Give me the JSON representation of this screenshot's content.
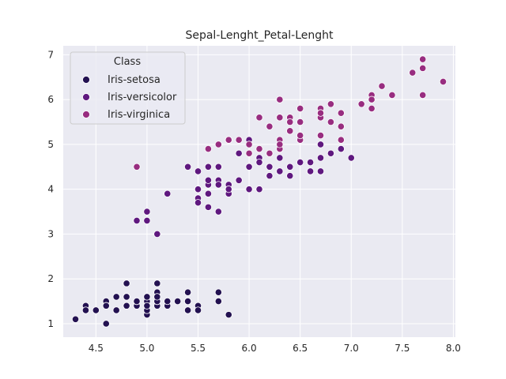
{
  "chart_data": {
    "type": "scatter",
    "title": "Sepal-Lenght_Petal-Lenght",
    "xlabel": "",
    "ylabel": "",
    "xlim": [
      4.18,
      8.02
    ],
    "ylim": [
      0.7,
      7.2
    ],
    "xticks": [
      "4.5",
      "5.0",
      "5.5",
      "6.0",
      "6.5",
      "7.0",
      "7.5",
      "8.0"
    ],
    "yticks": [
      "1",
      "2",
      "3",
      "4",
      "5",
      "6",
      "7"
    ],
    "grid": true,
    "legend": {
      "title": "Class",
      "placement": "top-left"
    },
    "series": [
      {
        "name": "Iris-setosa",
        "color": "#231151",
        "points": [
          [
            5.1,
            1.4
          ],
          [
            4.9,
            1.4
          ],
          [
            4.7,
            1.3
          ],
          [
            4.6,
            1.5
          ],
          [
            5.0,
            1.4
          ],
          [
            5.4,
            1.7
          ],
          [
            4.6,
            1.4
          ],
          [
            5.0,
            1.5
          ],
          [
            4.4,
            1.4
          ],
          [
            4.9,
            1.5
          ],
          [
            5.4,
            1.5
          ],
          [
            4.8,
            1.6
          ],
          [
            4.8,
            1.4
          ],
          [
            4.3,
            1.1
          ],
          [
            5.8,
            1.2
          ],
          [
            5.7,
            1.5
          ],
          [
            5.4,
            1.3
          ],
          [
            5.1,
            1.4
          ],
          [
            5.7,
            1.7
          ],
          [
            5.1,
            1.5
          ],
          [
            5.4,
            1.7
          ],
          [
            5.1,
            1.5
          ],
          [
            4.6,
            1.0
          ],
          [
            5.1,
            1.7
          ],
          [
            4.8,
            1.9
          ],
          [
            5.0,
            1.6
          ],
          [
            5.0,
            1.6
          ],
          [
            5.2,
            1.5
          ],
          [
            5.2,
            1.4
          ],
          [
            4.7,
            1.6
          ],
          [
            4.8,
            1.6
          ],
          [
            5.4,
            1.5
          ],
          [
            5.2,
            1.5
          ],
          [
            5.5,
            1.4
          ],
          [
            4.9,
            1.5
          ],
          [
            5.0,
            1.2
          ],
          [
            5.5,
            1.3
          ],
          [
            4.9,
            1.5
          ],
          [
            4.4,
            1.3
          ],
          [
            5.1,
            1.5
          ],
          [
            5.0,
            1.3
          ],
          [
            4.5,
            1.3
          ],
          [
            4.4,
            1.3
          ],
          [
            5.0,
            1.6
          ],
          [
            5.1,
            1.9
          ],
          [
            4.8,
            1.4
          ],
          [
            5.1,
            1.6
          ],
          [
            4.6,
            1.4
          ],
          [
            5.3,
            1.5
          ],
          [
            5.0,
            1.4
          ]
        ]
      },
      {
        "name": "Iris-versicolor",
        "color": "#5f187f",
        "points": [
          [
            7.0,
            4.7
          ],
          [
            6.4,
            4.5
          ],
          [
            6.9,
            4.9
          ],
          [
            5.5,
            4.0
          ],
          [
            6.5,
            4.6
          ],
          [
            5.7,
            4.5
          ],
          [
            6.3,
            4.7
          ],
          [
            4.9,
            3.3
          ],
          [
            6.6,
            4.6
          ],
          [
            5.2,
            3.9
          ],
          [
            5.0,
            3.5
          ],
          [
            5.9,
            4.2
          ],
          [
            6.0,
            4.0
          ],
          [
            6.1,
            4.7
          ],
          [
            5.6,
            3.6
          ],
          [
            6.7,
            4.4
          ],
          [
            5.6,
            4.5
          ],
          [
            5.8,
            4.1
          ],
          [
            6.2,
            4.5
          ],
          [
            5.6,
            3.9
          ],
          [
            5.9,
            4.8
          ],
          [
            6.1,
            4.0
          ],
          [
            6.3,
            4.9
          ],
          [
            6.1,
            4.7
          ],
          [
            6.4,
            4.3
          ],
          [
            6.6,
            4.4
          ],
          [
            6.8,
            4.8
          ],
          [
            6.7,
            5.0
          ],
          [
            6.0,
            4.5
          ],
          [
            5.7,
            3.5
          ],
          [
            5.5,
            3.8
          ],
          [
            5.5,
            3.7
          ],
          [
            5.8,
            3.9
          ],
          [
            6.0,
            5.1
          ],
          [
            5.4,
            4.5
          ],
          [
            6.0,
            4.5
          ],
          [
            6.7,
            4.7
          ],
          [
            6.3,
            4.4
          ],
          [
            5.6,
            4.1
          ],
          [
            5.5,
            4.0
          ],
          [
            5.5,
            4.4
          ],
          [
            6.1,
            4.6
          ],
          [
            5.8,
            4.0
          ],
          [
            5.0,
            3.3
          ],
          [
            5.6,
            4.2
          ],
          [
            5.7,
            4.2
          ],
          [
            5.7,
            4.2
          ],
          [
            6.2,
            4.3
          ],
          [
            5.1,
            3.0
          ],
          [
            5.7,
            4.1
          ]
        ]
      },
      {
        "name": "Iris-virginica",
        "color": "#982d80",
        "points": [
          [
            6.3,
            6.0
          ],
          [
            5.8,
            5.1
          ],
          [
            7.1,
            5.9
          ],
          [
            6.3,
            5.6
          ],
          [
            6.5,
            5.8
          ],
          [
            7.6,
            6.6
          ],
          [
            4.9,
            4.5
          ],
          [
            7.3,
            6.3
          ],
          [
            6.7,
            5.8
          ],
          [
            7.2,
            6.1
          ],
          [
            6.5,
            5.1
          ],
          [
            6.4,
            5.3
          ],
          [
            6.8,
            5.5
          ],
          [
            5.7,
            5.0
          ],
          [
            5.8,
            5.1
          ],
          [
            6.4,
            5.3
          ],
          [
            6.5,
            5.5
          ],
          [
            7.7,
            6.7
          ],
          [
            7.7,
            6.9
          ],
          [
            6.0,
            5.0
          ],
          [
            6.9,
            5.7
          ],
          [
            5.6,
            4.9
          ],
          [
            7.7,
            6.7
          ],
          [
            6.3,
            4.9
          ],
          [
            6.7,
            5.7
          ],
          [
            7.2,
            6.0
          ],
          [
            6.2,
            4.8
          ],
          [
            6.1,
            4.9
          ],
          [
            6.4,
            5.6
          ],
          [
            7.2,
            5.8
          ],
          [
            7.4,
            6.1
          ],
          [
            7.9,
            6.4
          ],
          [
            6.4,
            5.6
          ],
          [
            6.3,
            5.1
          ],
          [
            6.1,
            5.6
          ],
          [
            7.7,
            6.1
          ],
          [
            6.3,
            5.6
          ],
          [
            6.4,
            5.5
          ],
          [
            6.0,
            4.8
          ],
          [
            6.9,
            5.4
          ],
          [
            6.7,
            5.6
          ],
          [
            6.9,
            5.1
          ],
          [
            5.8,
            5.1
          ],
          [
            6.8,
            5.9
          ],
          [
            6.7,
            5.7
          ],
          [
            6.7,
            5.2
          ],
          [
            6.3,
            5.0
          ],
          [
            6.5,
            5.2
          ],
          [
            6.2,
            5.4
          ],
          [
            5.9,
            5.1
          ]
        ]
      }
    ]
  }
}
